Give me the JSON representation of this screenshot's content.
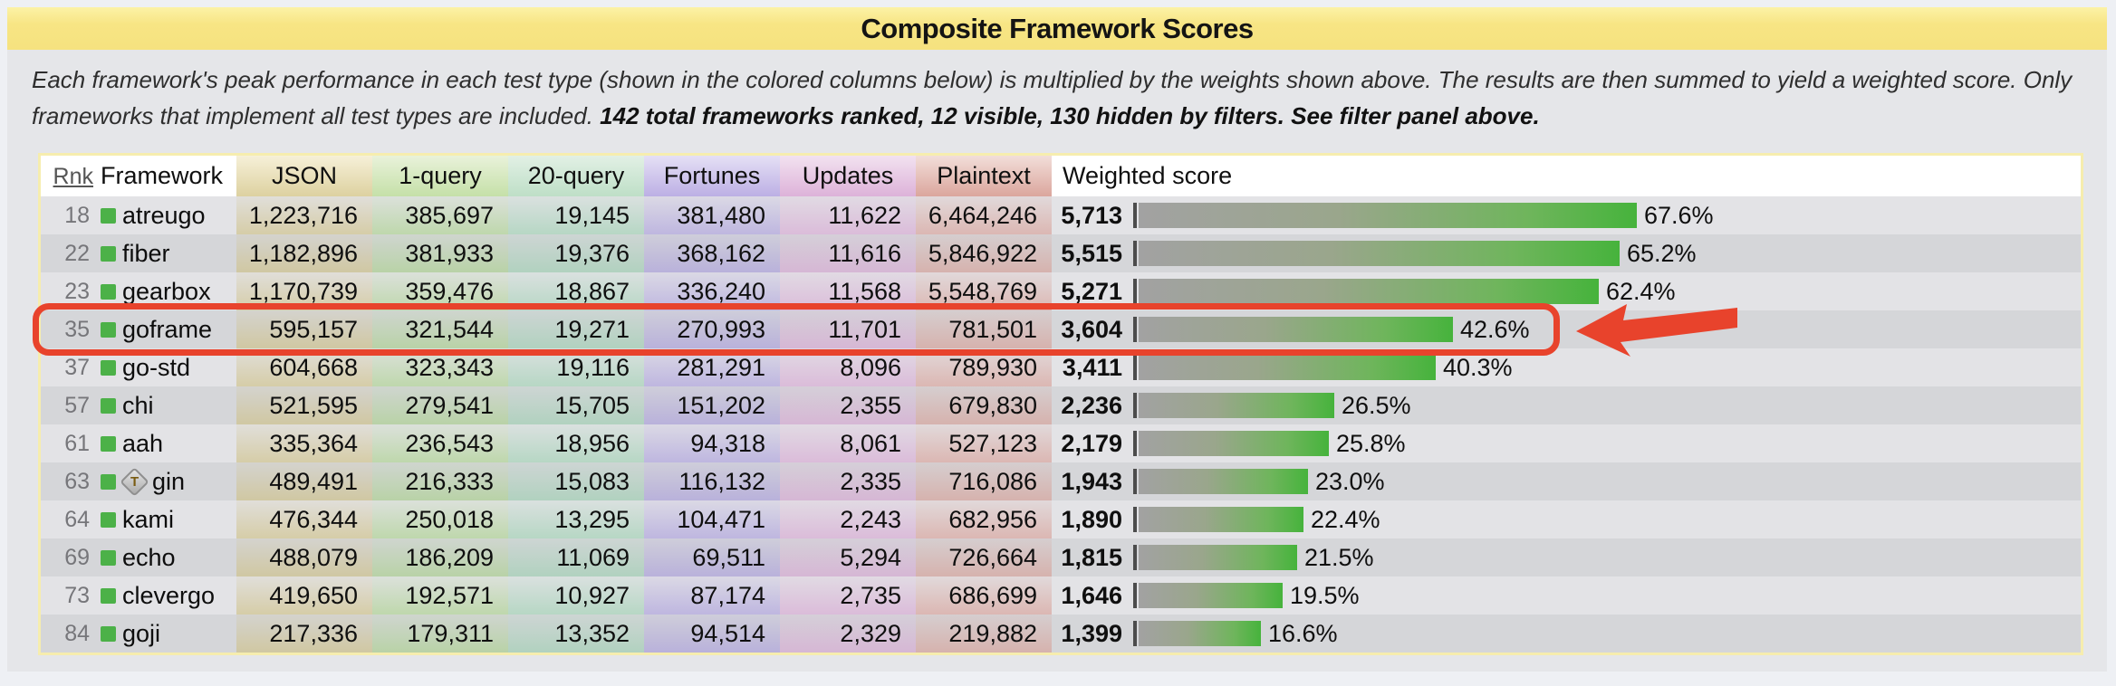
{
  "header": {
    "title": "Composite Framework Scores"
  },
  "description": {
    "line1": "Each framework's peak performance in each test type (shown in the colored columns below) is multiplied by the weights shown above. The results are then summed to yield a weighted score. Only",
    "line2_normal": "frameworks that implement all test types are included. ",
    "line2_bold": "142 total frameworks ranked, 12 visible, 130 hidden by filters. See filter panel above."
  },
  "table": {
    "columns": {
      "rnk": "Rnk",
      "framework": "Framework",
      "json": "JSON",
      "q1": "1-query",
      "q20": "20-query",
      "fortunes": "Fortunes",
      "updates": "Updates",
      "plaintext": "Plaintext",
      "weighted": "Weighted score"
    },
    "rows": [
      {
        "rnk": "18",
        "framework": "atreugo",
        "json": "1,223,716",
        "q1": "385,697",
        "q20": "19,145",
        "fortunes": "381,480",
        "updates": "11,622",
        "plaintext": "6,464,246",
        "score": "5,713",
        "pct": 67.6,
        "pct_label": "67.6%"
      },
      {
        "rnk": "22",
        "framework": "fiber",
        "json": "1,182,896",
        "q1": "381,933",
        "q20": "19,376",
        "fortunes": "368,162",
        "updates": "11,616",
        "plaintext": "5,846,922",
        "score": "5,515",
        "pct": 65.2,
        "pct_label": "65.2%"
      },
      {
        "rnk": "23",
        "framework": "gearbox",
        "json": "1,170,739",
        "q1": "359,476",
        "q20": "18,867",
        "fortunes": "336,240",
        "updates": "11,568",
        "plaintext": "5,548,769",
        "score": "5,271",
        "pct": 62.4,
        "pct_label": "62.4%"
      },
      {
        "rnk": "35",
        "framework": "goframe",
        "json": "595,157",
        "q1": "321,544",
        "q20": "19,271",
        "fortunes": "270,993",
        "updates": "11,701",
        "plaintext": "781,501",
        "score": "3,604",
        "pct": 42.6,
        "pct_label": "42.6%",
        "highlighted": true
      },
      {
        "rnk": "37",
        "framework": "go-std",
        "json": "604,668",
        "q1": "323,343",
        "q20": "19,116",
        "fortunes": "281,291",
        "updates": "8,096",
        "plaintext": "789,930",
        "score": "3,411",
        "pct": 40.3,
        "pct_label": "40.3%"
      },
      {
        "rnk": "57",
        "framework": "chi",
        "json": "521,595",
        "q1": "279,541",
        "q20": "15,705",
        "fortunes": "151,202",
        "updates": "2,355",
        "plaintext": "679,830",
        "score": "2,236",
        "pct": 26.5,
        "pct_label": "26.5%"
      },
      {
        "rnk": "61",
        "framework": "aah",
        "json": "335,364",
        "q1": "236,543",
        "q20": "18,956",
        "fortunes": "94,318",
        "updates": "8,061",
        "plaintext": "527,123",
        "score": "2,179",
        "pct": 25.8,
        "pct_label": "25.8%"
      },
      {
        "rnk": "63",
        "framework": "gin",
        "badge": "T",
        "json": "489,491",
        "q1": "216,333",
        "q20": "15,083",
        "fortunes": "116,132",
        "updates": "2,335",
        "plaintext": "716,086",
        "score": "1,943",
        "pct": 23.0,
        "pct_label": "23.0%"
      },
      {
        "rnk": "64",
        "framework": "kami",
        "json": "476,344",
        "q1": "250,018",
        "q20": "13,295",
        "fortunes": "104,471",
        "updates": "2,243",
        "plaintext": "682,956",
        "score": "1,890",
        "pct": 22.4,
        "pct_label": "22.4%"
      },
      {
        "rnk": "69",
        "framework": "echo",
        "json": "488,079",
        "q1": "186,209",
        "q20": "11,069",
        "fortunes": "69,511",
        "updates": "5,294",
        "plaintext": "726,664",
        "score": "1,815",
        "pct": 21.5,
        "pct_label": "21.5%"
      },
      {
        "rnk": "73",
        "framework": "clevergo",
        "json": "419,650",
        "q1": "192,571",
        "q20": "10,927",
        "fortunes": "87,174",
        "updates": "2,735",
        "plaintext": "686,699",
        "score": "1,646",
        "pct": 19.5,
        "pct_label": "19.5%"
      },
      {
        "rnk": "84",
        "framework": "goji",
        "json": "217,336",
        "q1": "179,311",
        "q20": "13,352",
        "fortunes": "94,514",
        "updates": "2,329",
        "plaintext": "219,882",
        "score": "1,399",
        "pct": 16.6,
        "pct_label": "16.6%"
      }
    ]
  },
  "annotations": {
    "highlighted_framework": "goframe",
    "highlighted_rank": "35",
    "arrow": "red arrow pointing at highlighted goframe row"
  },
  "colors": {
    "accent_yellow": "#f7e584",
    "panel_border": "#f6edae",
    "row_light": "#e3e3e6",
    "row_dark": "#d5d6d9",
    "highlight_red": "#e8432c",
    "bar_green": "#46b33c",
    "bar_gray": "#a2a2a2",
    "icon_green": "#4cb148",
    "col_json": "#cdbe7e",
    "col_1query": "#a6d086",
    "col_20query": "#99cfae",
    "col_fortunes": "#a89bdc",
    "col_updates": "#d6a4d2",
    "col_plaintext": "#d79c93"
  }
}
